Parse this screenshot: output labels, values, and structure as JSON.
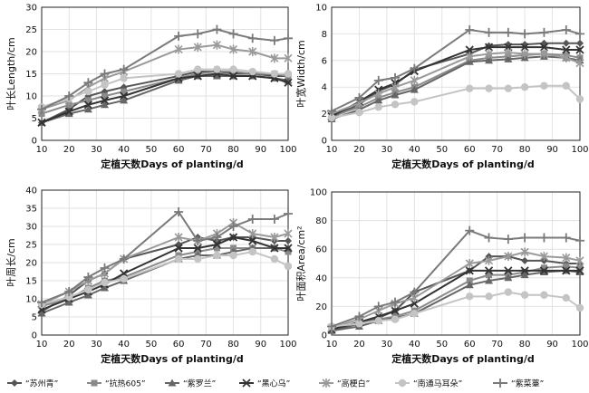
{
  "legend": [
    {
      "name": "“苏州青”",
      "color": "#555555",
      "marker": "diamond"
    },
    {
      "name": "“抗热605”",
      "color": "#8a8a8a",
      "marker": "square"
    },
    {
      "name": "“紫罗兰”",
      "color": "#666666",
      "marker": "triangle"
    },
    {
      "name": "“黑心乌”",
      "color": "#333333",
      "marker": "x"
    },
    {
      "name": "“高梗白”",
      "color": "#9a9a9a",
      "marker": "star"
    },
    {
      "name": "“南通马耳朵”",
      "color": "#c4c4c4",
      "marker": "circle"
    },
    {
      "name": "“紫菜薹”",
      "color": "#7a7a7a",
      "marker": "plus"
    }
  ],
  "chart_data": [
    {
      "type": "line",
      "xlabel": "定植天数Days of planting/d",
      "ylabel": "叶长Length/cm",
      "xlim": [
        10,
        100
      ],
      "ylim": [
        0,
        30
      ],
      "xticks": [
        10,
        20,
        30,
        40,
        50,
        60,
        70,
        80,
        90,
        100
      ],
      "yticks": [
        0,
        5,
        10,
        15,
        20,
        25,
        30
      ],
      "x": [
        10,
        20,
        27,
        33,
        40,
        60,
        67,
        74,
        80,
        87,
        95,
        100
      ],
      "series": [
        {
          "name": "“苏州青”",
          "values": [
            4,
            7,
            10,
            11,
            12,
            14.5,
            15.5,
            15.5,
            15,
            15,
            14.5,
            14.5
          ]
        },
        {
          "name": "“抗热605”",
          "values": [
            6,
            8,
            9,
            10,
            11,
            14,
            15,
            15.5,
            15.5,
            15,
            15,
            14.5
          ]
        },
        {
          "name": "“紫罗兰”",
          "values": [
            4,
            6,
            7,
            8,
            9,
            13.5,
            14.5,
            14.5,
            14.5,
            14.5,
            14,
            13.5
          ]
        },
        {
          "name": "“黑心乌”",
          "values": [
            4,
            6.5,
            8,
            9,
            10,
            14,
            14.5,
            15,
            14.5,
            14.5,
            14,
            13
          ]
        },
        {
          "name": "“高梗白”",
          "values": [
            7,
            9,
            12,
            14,
            15.5,
            20.5,
            21,
            21.5,
            20.5,
            20,
            18.5,
            18.5
          ]
        },
        {
          "name": "“南通马耳朵”",
          "values": [
            7.5,
            9.5,
            11,
            12.5,
            14,
            15,
            16,
            16,
            16,
            15.5,
            15,
            15
          ]
        },
        {
          "name": "“紫菜薹”",
          "values": [
            7,
            10,
            13,
            15,
            16,
            23.5,
            24,
            25,
            24,
            23,
            22.5,
            23
          ]
        }
      ]
    },
    {
      "type": "line",
      "xlabel": "定植天数Days of planting/d",
      "ylabel": "叶宽Width/cm",
      "xlim": [
        10,
        100
      ],
      "ylim": [
        0,
        10
      ],
      "xticks": [
        10,
        20,
        30,
        40,
        50,
        60,
        70,
        80,
        90,
        100
      ],
      "yticks": [
        0,
        2,
        4,
        6,
        8,
        10
      ],
      "x": [
        10,
        20,
        27,
        33,
        40,
        60,
        67,
        74,
        80,
        87,
        95,
        100
      ],
      "series": [
        {
          "name": "“苏州青”",
          "values": [
            1.7,
            2.7,
            3.7,
            4.2,
            5.3,
            6.5,
            7.1,
            7.2,
            7.2,
            7.3,
            7.3,
            7.3
          ]
        },
        {
          "name": "“抗热605”",
          "values": [
            1.8,
            2.5,
            3.2,
            3.6,
            4.0,
            6.0,
            6.2,
            6.3,
            6.4,
            6.5,
            6.4,
            6.2
          ]
        },
        {
          "name": "“紫罗兰”",
          "values": [
            1.6,
            2.3,
            3.0,
            3.4,
            3.8,
            5.9,
            6.0,
            6.1,
            6.2,
            6.3,
            6.2,
            6.0
          ]
        },
        {
          "name": "“黑心乌”",
          "values": [
            1.8,
            2.9,
            3.8,
            4.3,
            5.2,
            6.8,
            7.0,
            7.0,
            7.0,
            7.0,
            6.8,
            6.8
          ]
        },
        {
          "name": "“高梗白”",
          "values": [
            2.0,
            2.8,
            3.5,
            4.0,
            4.5,
            6.3,
            6.5,
            6.6,
            6.5,
            6.5,
            6.2,
            5.8
          ]
        },
        {
          "name": "“南通马耳朵”",
          "values": [
            1.7,
            2.1,
            2.5,
            2.7,
            2.9,
            3.9,
            3.9,
            3.9,
            4.0,
            4.1,
            4.1,
            3.1
          ]
        },
        {
          "name": "“紫菜薹”",
          "values": [
            2.2,
            3.2,
            4.5,
            4.7,
            5.4,
            8.3,
            8.1,
            8.1,
            8.0,
            8.1,
            8.3,
            8.0
          ]
        }
      ]
    },
    {
      "type": "line",
      "xlabel": "定植天数Days of planting/d",
      "ylabel": "叶周长/cm",
      "xlim": [
        10,
        100
      ],
      "ylim": [
        0,
        40
      ],
      "xticks": [
        10,
        20,
        30,
        40,
        50,
        60,
        70,
        80,
        90,
        100
      ],
      "yticks": [
        0,
        5,
        10,
        15,
        20,
        25,
        30,
        35,
        40
      ],
      "x": [
        10,
        20,
        27,
        33,
        40,
        60,
        67,
        74,
        80,
        87,
        95,
        100
      ],
      "series": [
        {
          "name": "“苏州青”",
          "values": [
            6.5,
            11,
            15,
            17,
            21,
            25,
            27,
            26,
            27,
            27,
            26,
            26
          ]
        },
        {
          "name": "“抗热605”",
          "values": [
            8,
            10,
            13,
            15,
            16,
            22,
            23,
            24,
            24,
            24,
            24,
            23
          ]
        },
        {
          "name": "“紫罗兰”",
          "values": [
            6,
            9,
            11,
            13,
            15,
            21,
            22,
            22,
            23,
            24,
            24,
            24
          ]
        },
        {
          "name": "“黑心乌”",
          "values": [
            7,
            10,
            12,
            14,
            17,
            24,
            24,
            25,
            27,
            26,
            24,
            24
          ]
        },
        {
          "name": "“高梗白”",
          "values": [
            8.5,
            12,
            15,
            17,
            21,
            27,
            26,
            28,
            31,
            28,
            27,
            28
          ]
        },
        {
          "name": "“南通马耳朵”",
          "values": [
            8.5,
            10.5,
            12.5,
            14.5,
            15.5,
            21,
            21,
            22,
            22,
            23,
            21,
            19
          ]
        },
        {
          "name": "“紫菜薹”",
          "values": [
            9,
            12,
            16,
            18.5,
            21,
            34,
            26,
            27,
            30,
            32,
            32,
            33.5
          ]
        }
      ]
    },
    {
      "type": "line",
      "xlabel": "定植天数Days of planting/d",
      "ylabel": "叶面积Area/cm²",
      "xlim": [
        10,
        100
      ],
      "ylim": [
        0,
        100
      ],
      "xticks": [
        10,
        20,
        30,
        40,
        50,
        60,
        70,
        80,
        90,
        100
      ],
      "yticks": [
        0,
        20,
        40,
        60,
        80,
        100
      ],
      "x": [
        10,
        20,
        27,
        33,
        40,
        60,
        67,
        74,
        80,
        87,
        95,
        100
      ],
      "series": [
        {
          "name": "“苏州青”",
          "values": [
            3,
            8,
            12,
            17,
            30,
            45,
            55,
            55,
            52,
            52,
            50,
            50
          ]
        },
        {
          "name": "“抗热605”",
          "values": [
            5,
            8,
            11,
            13,
            17,
            38,
            42,
            42,
            44,
            47,
            48,
            47
          ]
        },
        {
          "name": "“紫罗兰”",
          "values": [
            3,
            6,
            10,
            12,
            15,
            35,
            38,
            40,
            42,
            44,
            45,
            44
          ]
        },
        {
          "name": "“黑心乌”",
          "values": [
            4,
            9,
            13,
            17,
            22,
            45,
            45,
            45,
            45,
            45,
            45,
            45
          ]
        },
        {
          "name": "“高梗白”",
          "values": [
            5,
            11,
            17,
            22,
            26,
            50,
            52,
            55,
            58,
            55,
            54,
            52
          ]
        },
        {
          "name": "“南通马耳朵”",
          "values": [
            6,
            8,
            10,
            11,
            15,
            27,
            27,
            30,
            28,
            28,
            26,
            19
          ]
        },
        {
          "name": "“紫菜薹”",
          "values": [
            6,
            13,
            20,
            23,
            30,
            73,
            68,
            67,
            68,
            68,
            68,
            66
          ]
        }
      ]
    }
  ]
}
